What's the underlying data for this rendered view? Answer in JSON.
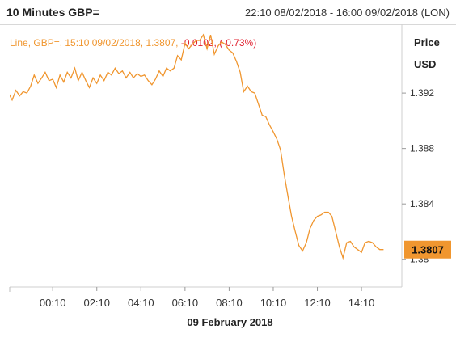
{
  "header": {
    "title": "10 Minutes GBP=",
    "range": "22:10 08/02/2018 - 16:00 09/02/2018 (LON)"
  },
  "legend": {
    "prefix": "Line, GBP=,  15:10 09/02/2018, 1.3807, ",
    "change": "-0.0102, (-0.73%)"
  },
  "axis_titles": {
    "line1": "Price",
    "line2": "USD"
  },
  "colors": {
    "line": "#f0962f",
    "last_badge": "#f0962f",
    "negative": "#e0202f"
  },
  "chart_data": {
    "type": "line",
    "xlabel": "09 February 2018",
    "ylabel": "Price USD",
    "ylim": [
      1.378,
      1.3965
    ],
    "y_ticks": [
      1.38,
      1.384,
      1.388,
      1.392
    ],
    "y_tick_labels": [
      "1.38",
      "1.384",
      "1.388",
      "1.392"
    ],
    "x_ticks": [
      "00:10",
      "02:10",
      "04:10",
      "06:10",
      "08:10",
      "10:10",
      "12:10",
      "14:10"
    ],
    "x_tick_hours": [
      0.17,
      2.17,
      4.17,
      6.17,
      8.17,
      10.17,
      12.17,
      14.17
    ],
    "xlim": [
      -1.78,
      16.0
    ],
    "last_value": 1.3807,
    "last_value_label": "1.3807",
    "series": [
      {
        "x": [
          -1.83,
          -1.67,
          -1.5,
          -1.33,
          -1.17,
          -1.0,
          -0.83,
          -0.67,
          -0.5,
          -0.33,
          -0.17,
          0.0,
          0.17,
          0.33,
          0.5,
          0.67,
          0.83,
          1.0,
          1.17,
          1.33,
          1.5,
          1.67,
          1.83,
          2.0,
          2.17,
          2.33,
          2.5,
          2.67,
          2.83,
          3.0,
          3.17,
          3.33,
          3.5,
          3.67,
          3.83,
          4.0,
          4.17,
          4.33,
          4.5,
          4.67,
          4.83,
          5.0,
          5.17,
          5.33,
          5.5,
          5.67,
          5.83,
          6.0,
          6.17,
          6.33,
          6.5,
          6.67,
          6.83,
          7.0,
          7.17,
          7.33,
          7.5,
          7.67,
          7.83,
          8.0,
          8.17,
          8.33,
          8.5,
          8.67,
          8.83,
          9.0,
          9.17,
          9.33,
          9.5,
          9.67,
          9.83,
          10.0,
          10.17,
          10.33,
          10.5,
          10.67,
          10.83,
          11.0,
          11.17,
          11.33,
          11.5,
          11.67,
          11.83,
          12.0,
          12.17,
          12.33,
          12.5,
          12.67,
          12.83,
          13.0,
          13.17,
          13.33,
          13.5,
          13.67,
          13.83,
          14.0,
          14.17,
          14.33,
          14.5,
          14.67,
          14.83,
          15.0,
          15.17
        ],
        "y": [
          1.392,
          1.3915,
          1.3922,
          1.3918,
          1.3921,
          1.392,
          1.3925,
          1.3933,
          1.3927,
          1.3931,
          1.3935,
          1.3929,
          1.393,
          1.3924,
          1.3933,
          1.3928,
          1.3935,
          1.3931,
          1.3938,
          1.3929,
          1.3935,
          1.3929,
          1.3924,
          1.3931,
          1.3927,
          1.3933,
          1.3929,
          1.3935,
          1.3933,
          1.3938,
          1.3934,
          1.3936,
          1.3931,
          1.3935,
          1.3931,
          1.3934,
          1.3932,
          1.3933,
          1.3929,
          1.3926,
          1.393,
          1.3936,
          1.3932,
          1.3938,
          1.3936,
          1.3938,
          1.3947,
          1.3944,
          1.3956,
          1.3952,
          1.3955,
          1.3958,
          1.3958,
          1.3962,
          1.3952,
          1.3962,
          1.3948,
          1.3954,
          1.3957,
          1.3955,
          1.3951,
          1.3949,
          1.3943,
          1.3935,
          1.3921,
          1.3925,
          1.3921,
          1.392,
          1.3912,
          1.3904,
          1.3903,
          1.3897,
          1.3892,
          1.3887,
          1.3879,
          1.3861,
          1.3846,
          1.3831,
          1.382,
          1.381,
          1.3806,
          1.3812,
          1.3822,
          1.3828,
          1.3831,
          1.3832,
          1.3834,
          1.3834,
          1.3831,
          1.382,
          1.3809,
          1.3801,
          1.3812,
          1.3813,
          1.3809,
          1.3807,
          1.3805,
          1.3812,
          1.3813,
          1.3812,
          1.3809,
          1.3807,
          1.3807
        ]
      }
    ]
  }
}
